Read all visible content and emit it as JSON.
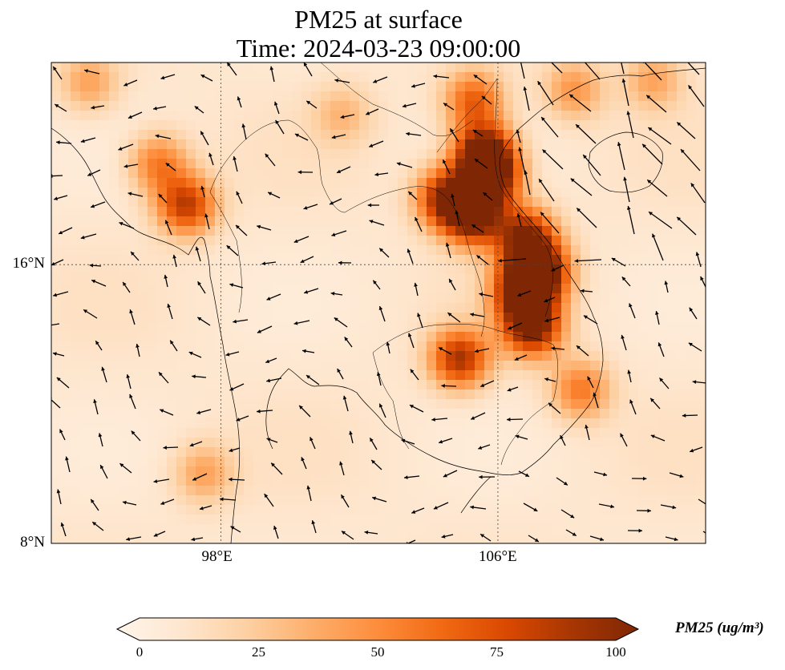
{
  "title": {
    "line1": "PM25 at surface",
    "line2": "Time: 2024-03-23 09:00:00"
  },
  "axes": {
    "lat_labels": [
      {
        "text": "16°N",
        "value": 16
      },
      {
        "text": "8°N",
        "value": 8
      }
    ],
    "lon_labels": [
      {
        "text": "98°E",
        "value": 98
      },
      {
        "text": "106°E",
        "value": 106
      }
    ]
  },
  "extent": {
    "lon_min": 93.1,
    "lon_max": 112.0,
    "lat_min": 8.0,
    "lat_max": 21.8
  },
  "colorbar": {
    "label": "PM25 (ug/m³)",
    "min": 0,
    "max": 100,
    "extend": "both",
    "ticks": [
      "0",
      "25",
      "50",
      "75",
      "100"
    ],
    "colors": [
      "#fff5eb",
      "#fee6ce",
      "#fdd0a2",
      "#fdae6b",
      "#fd8d3c",
      "#f16913",
      "#d94801",
      "#a63603",
      "#7f2704"
    ]
  },
  "hotspots": [
    {
      "lon": 105.3,
      "lat": 20.7,
      "value": 55
    },
    {
      "lon": 105.6,
      "lat": 19.2,
      "value": 95
    },
    {
      "lon": 105.8,
      "lat": 18.5,
      "value": 85
    },
    {
      "lon": 104.5,
      "lat": 17.9,
      "value": 80
    },
    {
      "lon": 105.3,
      "lat": 17.4,
      "value": 90
    },
    {
      "lon": 106.8,
      "lat": 16.8,
      "value": 80
    },
    {
      "lon": 107.2,
      "lat": 15.8,
      "value": 95
    },
    {
      "lon": 106.7,
      "lat": 15.2,
      "value": 80
    },
    {
      "lon": 107.0,
      "lat": 14.2,
      "value": 88
    },
    {
      "lon": 104.9,
      "lat": 13.3,
      "value": 75
    },
    {
      "lon": 108.4,
      "lat": 12.4,
      "value": 45
    },
    {
      "lon": 96.2,
      "lat": 18.9,
      "value": 45
    },
    {
      "lon": 97.0,
      "lat": 17.7,
      "value": 70
    },
    {
      "lon": 94.2,
      "lat": 21.2,
      "value": 30
    },
    {
      "lon": 97.5,
      "lat": 10.0,
      "value": 30
    },
    {
      "lon": 101.5,
      "lat": 20.3,
      "value": 22
    },
    {
      "lon": 108.2,
      "lat": 21.0,
      "value": 35
    },
    {
      "lon": 110.5,
      "lat": 21.3,
      "value": 30
    }
  ],
  "wind": {
    "u": -2.0,
    "v": 1.0
  }
}
